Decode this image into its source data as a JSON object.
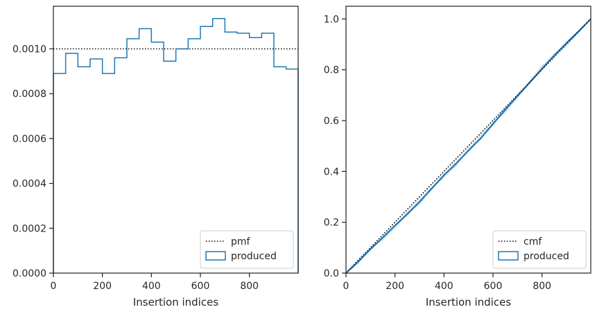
{
  "chart_data": [
    {
      "type": "line",
      "xlabel": "Insertion indices",
      "ylabel": "",
      "xlim": [
        0,
        999
      ],
      "ylim": [
        0,
        0.00119
      ],
      "grid": false,
      "legend": {
        "placement": "lower-right",
        "entries": [
          "pmf",
          "produced"
        ]
      },
      "x_ticks": [
        0,
        200,
        400,
        600,
        800
      ],
      "x_tick_labels": [
        "0",
        "200",
        "400",
        "600",
        "800"
      ],
      "y_ticks": [
        0,
        0.0002,
        0.0004,
        0.0006,
        0.0008,
        0.001
      ],
      "y_tick_labels": [
        "0.0000",
        "0.0002",
        "0.0004",
        "0.0006",
        "0.0008",
        "0.0010"
      ],
      "series": [
        {
          "name": "pmf",
          "style": "dotted",
          "color": "#000000",
          "x": [
            0,
            999
          ],
          "values": [
            0.001,
            0.001
          ]
        },
        {
          "name": "produced",
          "style": "step-histogram",
          "color": "#1f77b4",
          "bin_edges": [
            0,
            50,
            100,
            150,
            200,
            250,
            300,
            350,
            400,
            450,
            500,
            550,
            600,
            650,
            700,
            750,
            800,
            850,
            900,
            950,
            999
          ],
          "values": [
            0.00089,
            0.00098,
            0.00092,
            0.000955,
            0.00089,
            0.00096,
            0.001045,
            0.00109,
            0.00103,
            0.000945,
            0.001,
            0.001045,
            0.0011,
            0.001135,
            0.001075,
            0.00107,
            0.00105,
            0.00107,
            0.00092,
            0.00091
          ]
        }
      ]
    },
    {
      "type": "line",
      "xlabel": "Insertion indices",
      "ylabel": "",
      "xlim": [
        0,
        999
      ],
      "ylim": [
        0,
        1.05
      ],
      "grid": false,
      "legend": {
        "placement": "lower-right",
        "entries": [
          "cmf",
          "produced"
        ]
      },
      "x_ticks": [
        0,
        200,
        400,
        600,
        800
      ],
      "x_tick_labels": [
        "0",
        "200",
        "400",
        "600",
        "800"
      ],
      "y_ticks": [
        0,
        0.2,
        0.4,
        0.6,
        0.8,
        1.0
      ],
      "y_tick_labels": [
        "0.0",
        "0.2",
        "0.4",
        "0.6",
        "0.8",
        "1.0"
      ],
      "series": [
        {
          "name": "cmf",
          "style": "dotted",
          "color": "#000000",
          "x": [
            0,
            999
          ],
          "values": [
            0,
            1
          ]
        },
        {
          "name": "produced",
          "style": "line",
          "color": "#1f77b4",
          "x": [
            0,
            50,
            100,
            150,
            200,
            250,
            300,
            350,
            400,
            450,
            500,
            550,
            600,
            650,
            700,
            750,
            800,
            850,
            900,
            950,
            999
          ],
          "values": [
            0,
            0.045,
            0.094,
            0.14,
            0.187,
            0.232,
            0.28,
            0.333,
            0.385,
            0.432,
            0.482,
            0.531,
            0.587,
            0.643,
            0.697,
            0.75,
            0.804,
            0.857,
            0.905,
            0.952,
            1.0
          ]
        }
      ]
    }
  ]
}
